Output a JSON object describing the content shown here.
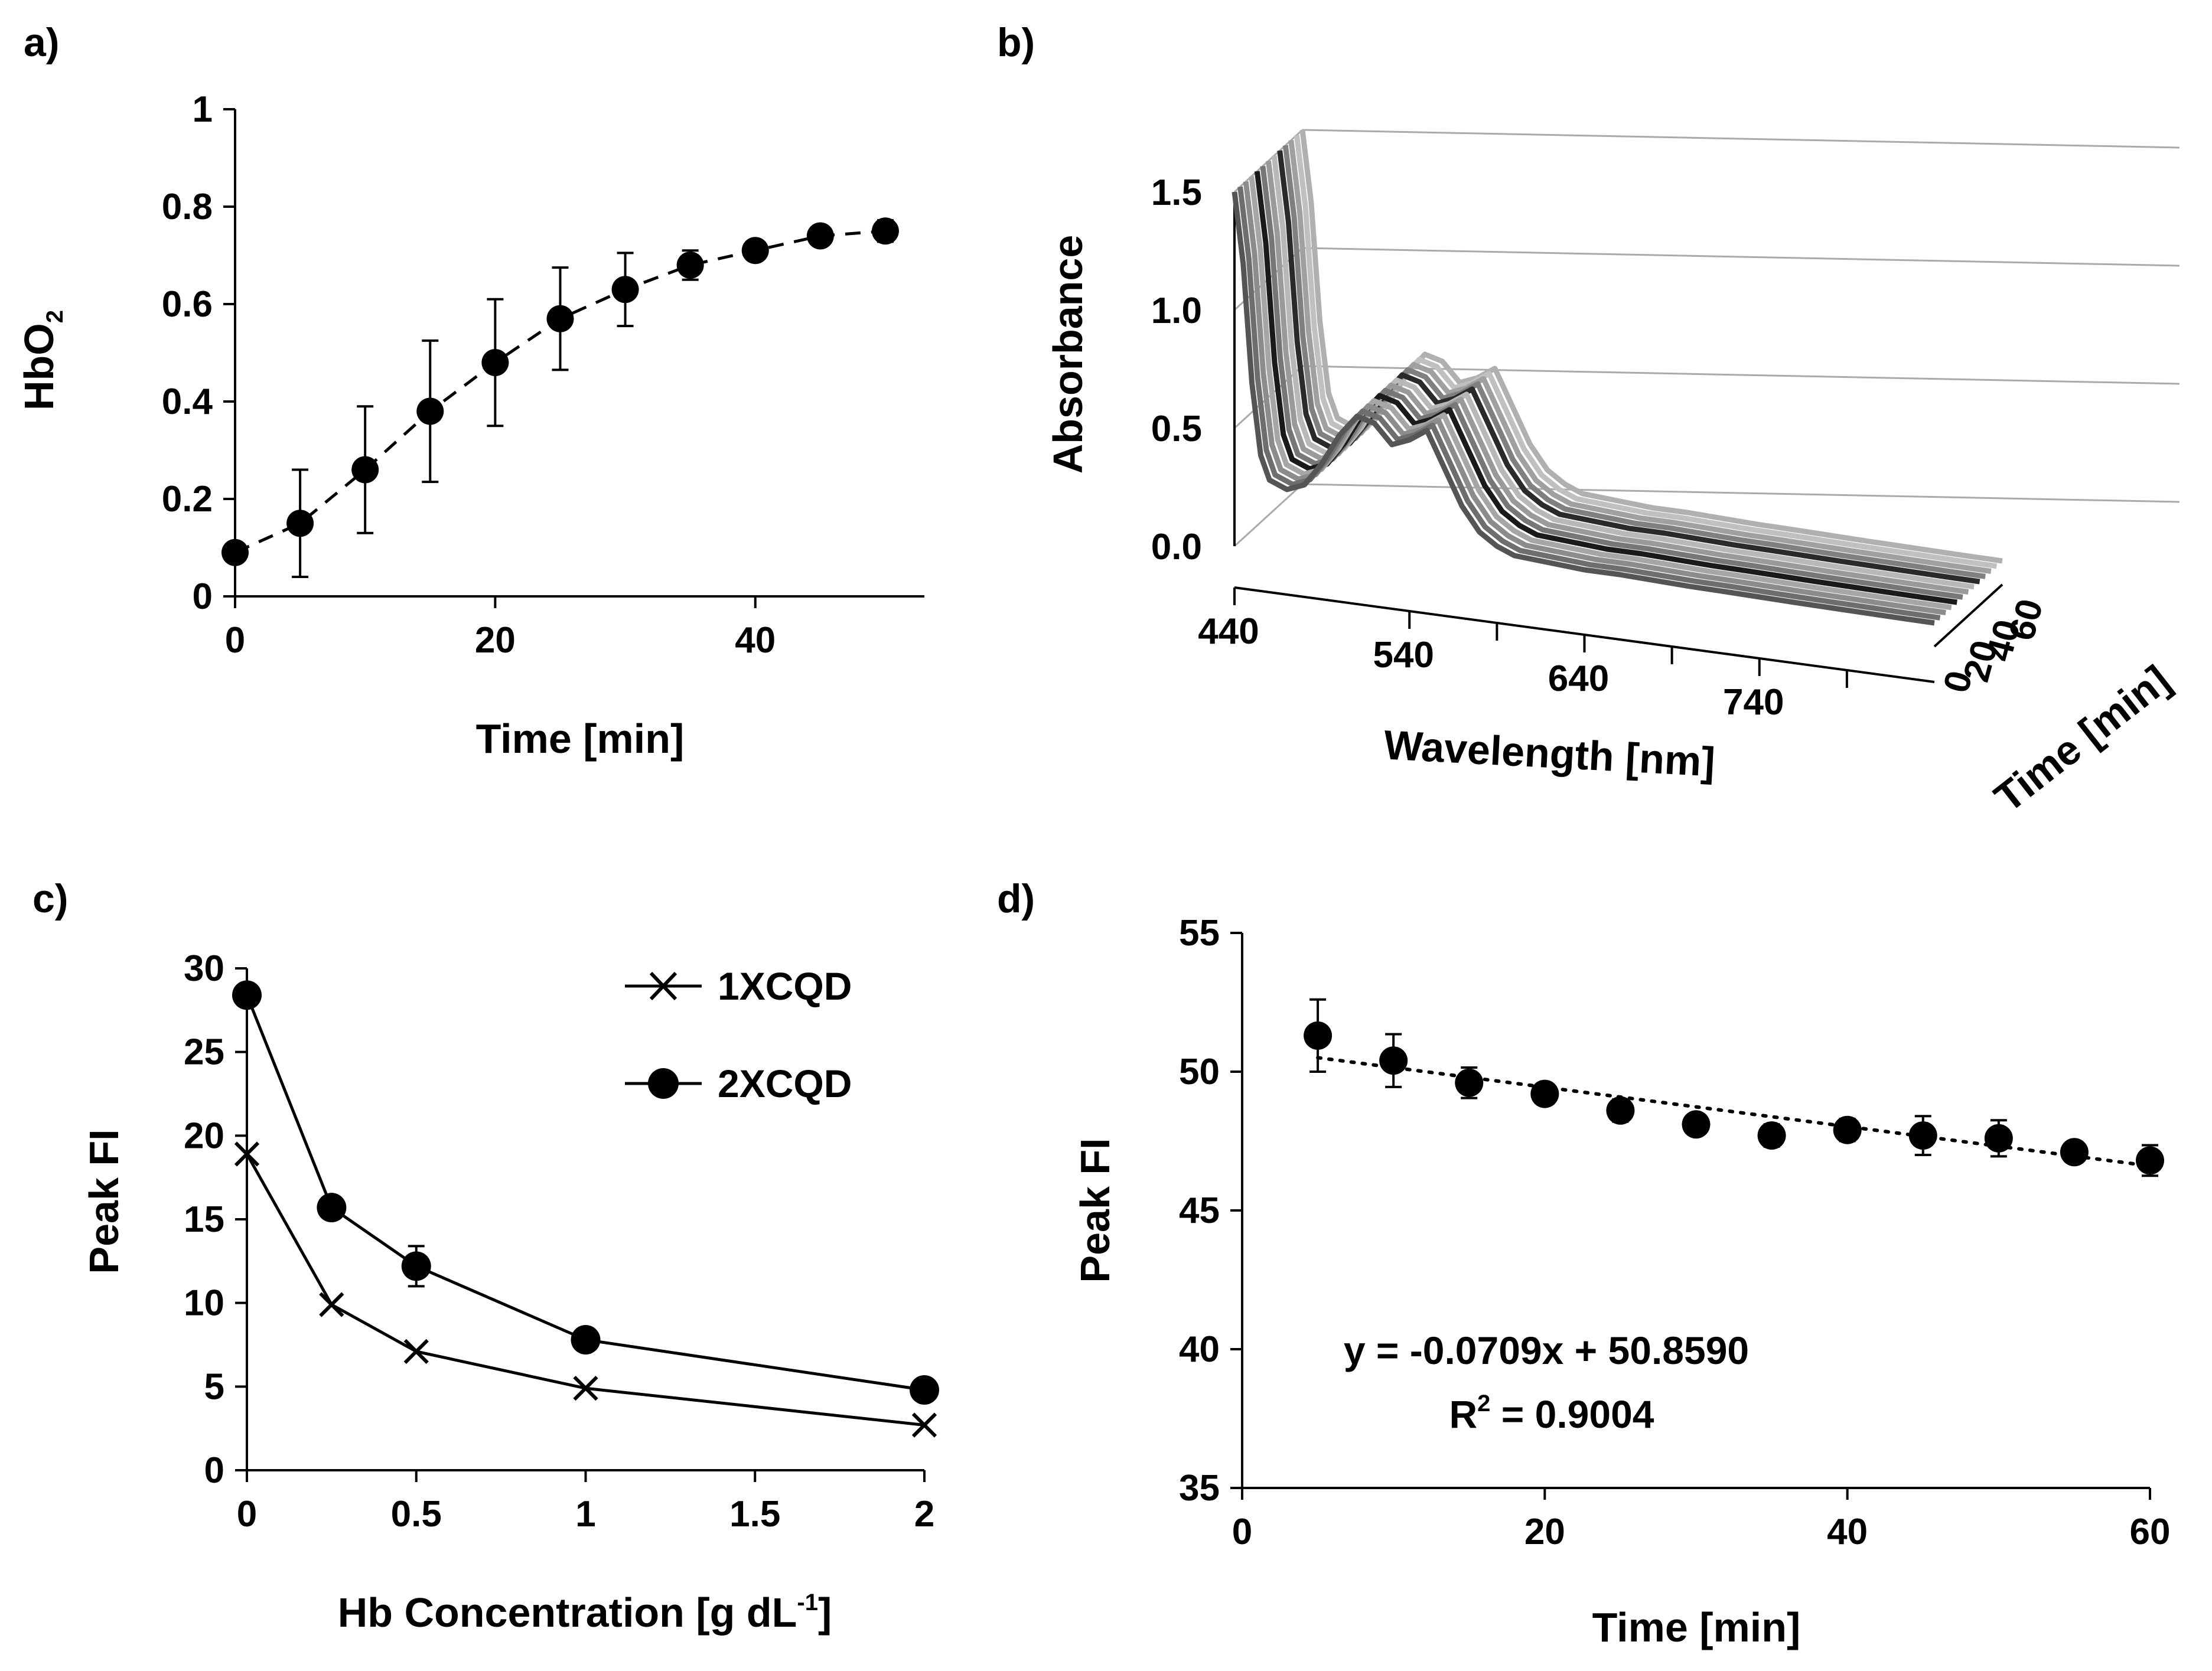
{
  "chart_data": [
    {
      "panel": "a)",
      "type": "line",
      "xlabel": "Time [min]",
      "ylabel_main": "HbO",
      "ylabel_sub": "2",
      "xlim": [
        0,
        53
      ],
      "ylim": [
        0,
        1
      ],
      "xticks": [
        "0",
        "20",
        "40"
      ],
      "xtick_values": [
        0,
        20,
        40
      ],
      "yticks": [
        "0",
        "0.2",
        "0.4",
        "0.6",
        "0.8",
        "1"
      ],
      "ytick_values": [
        0,
        0.2,
        0.4,
        0.6,
        0.8,
        1
      ],
      "line_style": "dashed",
      "marker": "circle",
      "x": [
        0,
        5,
        10,
        15,
        20,
        25,
        30,
        35,
        40,
        45,
        50
      ],
      "y": [
        0.09,
        0.15,
        0.26,
        0.38,
        0.48,
        0.57,
        0.63,
        0.68,
        0.71,
        0.74,
        0.75
      ],
      "err": [
        0.01,
        0.11,
        0.13,
        0.145,
        0.13,
        0.105,
        0.075,
        0.03,
        0.012,
        0.015,
        0.022
      ]
    },
    {
      "panel": "b)",
      "type": "line",
      "subtype": "3d-waterfall",
      "xlabel": "Wavelength [nm]",
      "ylabel": "Absorbance",
      "zlabel": "Time [min]",
      "xlim": [
        440,
        840
      ],
      "ylim": [
        0,
        1.5
      ],
      "zlim": [
        0,
        60
      ],
      "xticks": [
        "440",
        "540",
        "640",
        "740"
      ],
      "xtick_values": [
        440,
        540,
        640,
        740
      ],
      "yticks": [
        "0.0",
        "0.5",
        "1.0",
        "1.5"
      ],
      "ytick_values": [
        0,
        0.5,
        1.0,
        1.5
      ],
      "zticks": [
        "0",
        "20",
        "40",
        "60"
      ],
      "ztick_values": [
        0,
        20,
        40,
        60
      ],
      "series_times": [
        0,
        5,
        10,
        15,
        20,
        25,
        30,
        35,
        40,
        45,
        50,
        55,
        60
      ],
      "series_colors": [
        "#555555",
        "#6e6e6e",
        "#8c8c8c",
        "#a6a6a6",
        "#1a1a1a",
        "#777777",
        "#9a9a9a",
        "#b8b8b8",
        "#2a2a2a",
        "#808080",
        "#a0a0a0",
        "#c0c0c0",
        "#b0b0b0"
      ],
      "wavelength": [
        440,
        445,
        450,
        455,
        460,
        470,
        480,
        490,
        500,
        510,
        520,
        530,
        540,
        550,
        560,
        570,
        580,
        590,
        600,
        620,
        640,
        660,
        680,
        700,
        720,
        740,
        760,
        780,
        800,
        820,
        840
      ],
      "absorbance": [
        1.5,
        1.2,
        0.7,
        0.4,
        0.3,
        0.27,
        0.3,
        0.4,
        0.53,
        0.62,
        0.6,
        0.52,
        0.55,
        0.6,
        0.45,
        0.3,
        0.2,
        0.15,
        0.12,
        0.11,
        0.1,
        0.1,
        0.095,
        0.09,
        0.088,
        0.085,
        0.082,
        0.08,
        0.078,
        0.076,
        0.075
      ]
    },
    {
      "panel": "c)",
      "type": "line",
      "xlabel_main": "Hb Concentration [g dL",
      "xlabel_sup": "-1",
      "xlabel_end": "]",
      "ylabel": "Peak FI",
      "xlim": [
        0,
        2
      ],
      "ylim": [
        0,
        30
      ],
      "xticks": [
        "0",
        "0.5",
        "1",
        "1.5",
        "2"
      ],
      "xtick_values": [
        0,
        0.5,
        1,
        1.5,
        2
      ],
      "yticks": [
        "0",
        "5",
        "10",
        "15",
        "20",
        "25",
        "30"
      ],
      "ytick_values": [
        0,
        5,
        10,
        15,
        20,
        25,
        30
      ],
      "legend_position": "top-right",
      "series": [
        {
          "name": "1XCQD",
          "marker": "x",
          "x": [
            0,
            0.25,
            0.5,
            1,
            2
          ],
          "values": [
            18.9,
            9.9,
            7.1,
            4.9,
            2.7
          ],
          "err": [
            0,
            0,
            0,
            0,
            0
          ]
        },
        {
          "name": "2XCQD",
          "marker": "circle",
          "x": [
            0,
            0.25,
            0.5,
            1,
            2
          ],
          "values": [
            28.4,
            15.7,
            12.2,
            7.8,
            4.8
          ],
          "err": [
            0.3,
            0.4,
            1.2,
            0.3,
            0.3
          ]
        }
      ]
    },
    {
      "panel": "d)",
      "type": "scatter",
      "xlabel": "Time [min]",
      "ylabel": "Peak FI",
      "xlim": [
        0,
        60
      ],
      "ylim": [
        35,
        55
      ],
      "xticks": [
        "0",
        "20",
        "40",
        "60"
      ],
      "xtick_values": [
        0,
        20,
        40,
        60
      ],
      "yticks": [
        "35",
        "40",
        "45",
        "50",
        "55"
      ],
      "ytick_values": [
        35,
        40,
        45,
        50,
        55
      ],
      "x": [
        5,
        10,
        15,
        20,
        25,
        30,
        35,
        40,
        45,
        50,
        55,
        60
      ],
      "y": [
        51.3,
        50.4,
        49.6,
        49.2,
        48.6,
        48.1,
        47.7,
        47.9,
        47.7,
        47.6,
        47.1,
        46.8
      ],
      "err": [
        1.3,
        0.95,
        0.55,
        0.35,
        0.4,
        0.35,
        0.4,
        0.4,
        0.7,
        0.65,
        0.3,
        0.55
      ],
      "trendline": {
        "slope": -0.0709,
        "intercept": 50.859,
        "style": "dotted"
      },
      "equation": "y = -0.0709x + 50.8590",
      "r2_main": "R",
      "r2_sup": "2",
      "r2_value": " = 0.9004"
    }
  ]
}
